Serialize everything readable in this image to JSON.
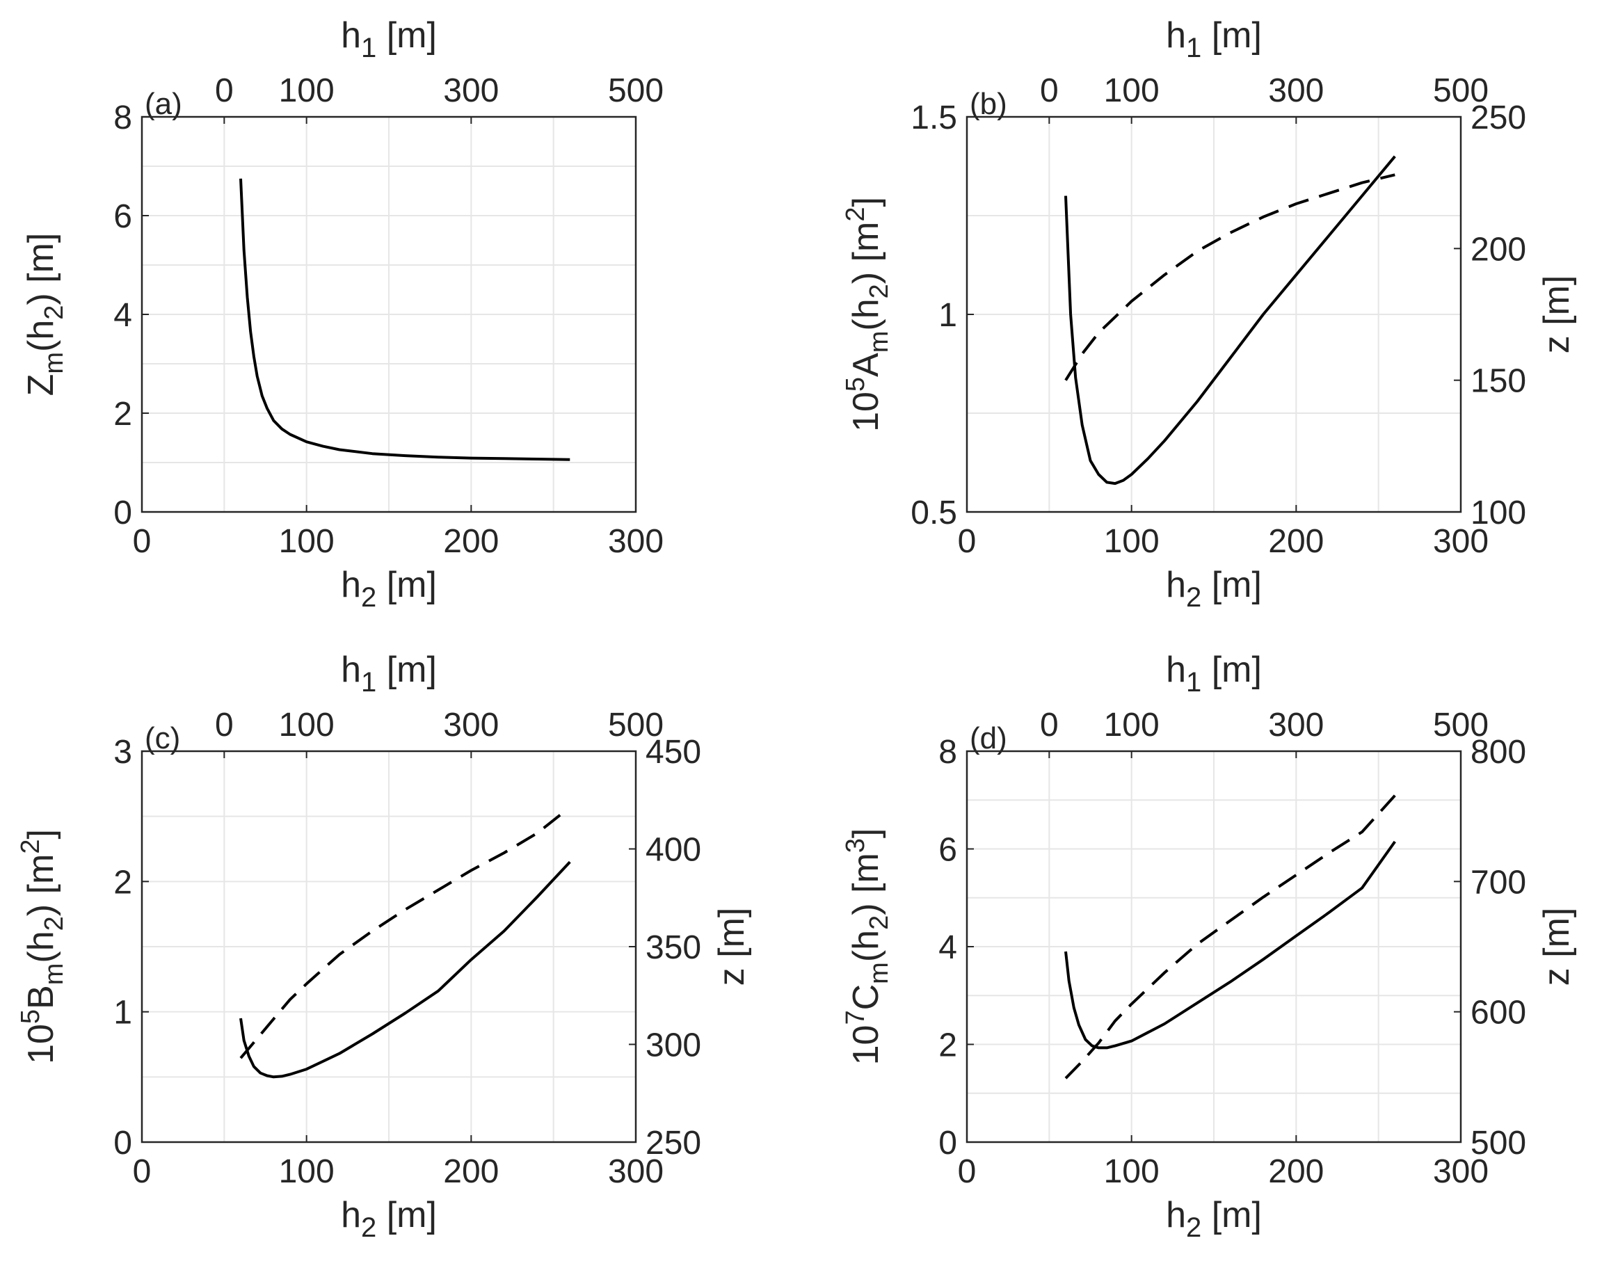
{
  "chart_data": [
    {
      "type": "line",
      "panel_label": "(a)",
      "xlabel": {
        "main": "h",
        "sub": "2",
        "unit": " [m]"
      },
      "top_xlabel": {
        "main": "h",
        "sub": "1",
        "unit": " [m]"
      },
      "ylabel": {
        "parts": [
          {
            "t": "Z"
          },
          {
            "t": "m",
            "sub": true
          },
          {
            "t": "(h"
          },
          {
            "t": "2",
            "sub": true
          },
          {
            "t": ") [m]"
          }
        ]
      },
      "y2label": null,
      "xlim": [
        0,
        300
      ],
      "ylim": [
        0,
        8
      ],
      "y2lim": null,
      "xticks": [
        0,
        100,
        200,
        300
      ],
      "yticks": [
        0,
        2,
        4,
        6,
        8
      ],
      "y2ticks": null,
      "grid_x": [
        0,
        50,
        100,
        150,
        200,
        250,
        300
      ],
      "grid_y": [
        0,
        1,
        2,
        3,
        4,
        5,
        6,
        7,
        8
      ],
      "top_ticks": [
        {
          "label": "0",
          "at_h2": 50
        },
        {
          "label": "100",
          "at_h2": 100
        },
        {
          "label": "300",
          "at_h2": 200
        },
        {
          "label": "500",
          "at_h2": 300
        }
      ],
      "series": [
        {
          "name": "solid",
          "axis": "left",
          "style": "solid",
          "x": [
            60,
            62,
            64,
            66,
            68,
            70,
            73,
            76,
            80,
            85,
            90,
            100,
            110,
            120,
            140,
            160,
            180,
            200,
            220,
            240,
            260
          ],
          "y": [
            6.75,
            5.3,
            4.35,
            3.65,
            3.15,
            2.75,
            2.35,
            2.1,
            1.85,
            1.68,
            1.57,
            1.42,
            1.33,
            1.26,
            1.18,
            1.14,
            1.11,
            1.09,
            1.08,
            1.07,
            1.06
          ]
        }
      ]
    },
    {
      "type": "line",
      "panel_label": "(b)",
      "xlabel": {
        "main": "h",
        "sub": "2",
        "unit": " [m]"
      },
      "top_xlabel": {
        "main": "h",
        "sub": "1",
        "unit": " [m]"
      },
      "ylabel": {
        "parts": [
          {
            "t": "10"
          },
          {
            "t": "5",
            "sup": true
          },
          {
            "t": "A"
          },
          {
            "t": "m",
            "sub": true
          },
          {
            "t": "(h"
          },
          {
            "t": "2",
            "sub": true
          },
          {
            "t": ") [m"
          },
          {
            "t": "2",
            "sup": true
          },
          {
            "t": "]"
          }
        ]
      },
      "y2label": "z [m]",
      "xlim": [
        0,
        300
      ],
      "ylim": [
        0.5,
        1.5
      ],
      "y2lim": [
        100,
        250
      ],
      "xticks": [
        0,
        100,
        200,
        300
      ],
      "yticks": [
        0.5,
        1,
        1.5
      ],
      "y2ticks": [
        100,
        150,
        200,
        250
      ],
      "grid_x": [
        0,
        50,
        100,
        150,
        200,
        250,
        300
      ],
      "grid_y": [
        0.5,
        0.75,
        1.0,
        1.25,
        1.5
      ],
      "top_ticks": [
        {
          "label": "0",
          "at_h2": 50
        },
        {
          "label": "100",
          "at_h2": 100
        },
        {
          "label": "300",
          "at_h2": 200
        },
        {
          "label": "500",
          "at_h2": 300
        }
      ],
      "series": [
        {
          "name": "solid",
          "axis": "left",
          "style": "solid",
          "x": [
            60,
            63,
            66,
            70,
            75,
            80,
            85,
            90,
            95,
            100,
            110,
            120,
            140,
            160,
            180,
            200,
            220,
            240,
            260
          ],
          "y": [
            1.3,
            1.0,
            0.84,
            0.72,
            0.63,
            0.595,
            0.575,
            0.572,
            0.58,
            0.595,
            0.635,
            0.68,
            0.78,
            0.89,
            1.0,
            1.1,
            1.2,
            1.3,
            1.4
          ]
        },
        {
          "name": "dashed",
          "axis": "right",
          "style": "dashed",
          "x": [
            60,
            70,
            80,
            90,
            100,
            120,
            140,
            160,
            180,
            200,
            220,
            240,
            260
          ],
          "y": [
            150,
            160,
            168,
            174,
            180,
            190,
            199,
            206,
            212,
            217,
            221,
            225,
            228
          ]
        }
      ]
    },
    {
      "type": "line",
      "panel_label": "(c)",
      "xlabel": {
        "main": "h",
        "sub": "2",
        "unit": " [m]"
      },
      "top_xlabel": {
        "main": "h",
        "sub": "1",
        "unit": " [m]"
      },
      "ylabel": {
        "parts": [
          {
            "t": "10"
          },
          {
            "t": "5",
            "sup": true
          },
          {
            "t": "B"
          },
          {
            "t": "m",
            "sub": true
          },
          {
            "t": "(h"
          },
          {
            "t": "2",
            "sub": true
          },
          {
            "t": ") [m"
          },
          {
            "t": "2",
            "sup": true
          },
          {
            "t": "]"
          }
        ]
      },
      "y2label": "z [m]",
      "xlim": [
        0,
        300
      ],
      "ylim": [
        0,
        3
      ],
      "y2lim": [
        250,
        450
      ],
      "xticks": [
        0,
        100,
        200,
        300
      ],
      "yticks": [
        0,
        1,
        2,
        3
      ],
      "y2ticks": [
        250,
        300,
        350,
        400,
        450
      ],
      "grid_x": [
        0,
        50,
        100,
        150,
        200,
        250,
        300
      ],
      "grid_y": [
        0,
        0.5,
        1,
        1.5,
        2,
        2.5,
        3
      ],
      "top_ticks": [
        {
          "label": "0",
          "at_h2": 50
        },
        {
          "label": "100",
          "at_h2": 100
        },
        {
          "label": "300",
          "at_h2": 200
        },
        {
          "label": "500",
          "at_h2": 300
        }
      ],
      "series": [
        {
          "name": "solid",
          "axis": "left",
          "style": "solid",
          "x": [
            60,
            62,
            65,
            68,
            72,
            76,
            80,
            85,
            90,
            100,
            120,
            140,
            160,
            180,
            200,
            220,
            240,
            260
          ],
          "y": [
            0.95,
            0.78,
            0.66,
            0.58,
            0.53,
            0.51,
            0.5,
            0.505,
            0.52,
            0.56,
            0.68,
            0.83,
            0.99,
            1.16,
            1.4,
            1.62,
            1.88,
            2.15
          ]
        },
        {
          "name": "dashed",
          "axis": "right",
          "style": "dashed",
          "x": [
            60,
            70,
            80,
            90,
            100,
            120,
            140,
            160,
            180,
            200,
            220,
            240,
            255
          ],
          "y": [
            293,
            303,
            313,
            323,
            331,
            346,
            358,
            369,
            379,
            389,
            398,
            408,
            418
          ]
        }
      ]
    },
    {
      "type": "line",
      "panel_label": "(d)",
      "xlabel": {
        "main": "h",
        "sub": "2",
        "unit": " [m]"
      },
      "top_xlabel": {
        "main": "h",
        "sub": "1",
        "unit": " [m]"
      },
      "ylabel": {
        "parts": [
          {
            "t": "10"
          },
          {
            "t": "7",
            "sup": true
          },
          {
            "t": "C"
          },
          {
            "t": "m",
            "sub": true
          },
          {
            "t": "(h"
          },
          {
            "t": "2",
            "sub": true
          },
          {
            "t": ") [m"
          },
          {
            "t": "3",
            "sup": true
          },
          {
            "t": "]"
          }
        ]
      },
      "y2label": "z [m]",
      "xlim": [
        0,
        300
      ],
      "ylim": [
        0,
        8
      ],
      "y2lim": [
        500,
        800
      ],
      "xticks": [
        0,
        100,
        200,
        300
      ],
      "yticks": [
        0,
        2,
        4,
        6,
        8
      ],
      "y2ticks": [
        500,
        600,
        700,
        800
      ],
      "grid_x": [
        0,
        50,
        100,
        150,
        200,
        250,
        300
      ],
      "grid_y": [
        0,
        1,
        2,
        3,
        4,
        5,
        6,
        7,
        8
      ],
      "top_ticks": [
        {
          "label": "0",
          "at_h2": 50
        },
        {
          "label": "100",
          "at_h2": 100
        },
        {
          "label": "300",
          "at_h2": 200
        },
        {
          "label": "500",
          "at_h2": 300
        }
      ],
      "series": [
        {
          "name": "solid",
          "axis": "left",
          "style": "solid",
          "x": [
            60,
            62,
            65,
            68,
            72,
            76,
            80,
            85,
            90,
            100,
            120,
            140,
            160,
            180,
            200,
            220,
            240,
            260
          ],
          "y": [
            3.9,
            3.3,
            2.75,
            2.4,
            2.1,
            1.97,
            1.93,
            1.93,
            1.97,
            2.07,
            2.42,
            2.85,
            3.28,
            3.74,
            4.22,
            4.7,
            5.2,
            6.15
          ]
        },
        {
          "name": "dashed",
          "axis": "right",
          "style": "dashed",
          "x": [
            60,
            70,
            80,
            90,
            100,
            120,
            140,
            160,
            180,
            200,
            220,
            240,
            260
          ],
          "y": [
            549,
            562,
            576,
            593,
            606,
            630,
            652,
            670,
            688,
            705,
            722,
            738,
            766
          ]
        }
      ]
    }
  ]
}
